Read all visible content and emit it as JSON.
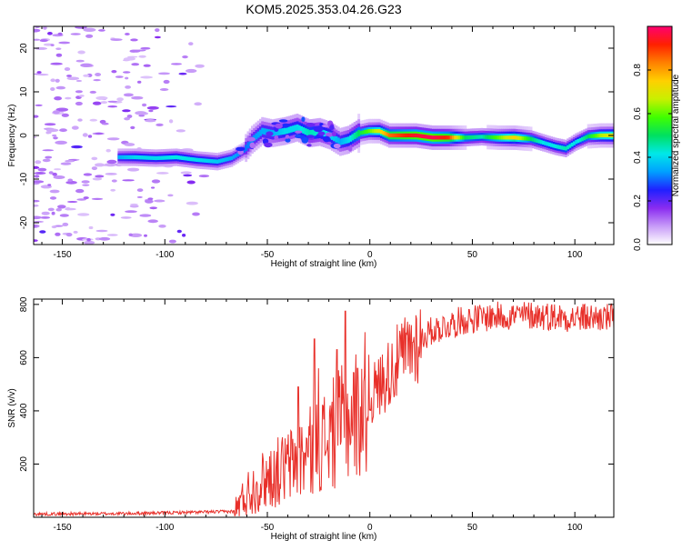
{
  "title": "KOM5.2025.353.04.26.G23",
  "colors": {
    "snr_line": "#e8302a",
    "frame": "#000000"
  },
  "chart_data": [
    {
      "type": "heatmap",
      "name": "spectrogram",
      "xlabel": "Height of straight line (km)",
      "ylabel": "Frequency (Hz)",
      "xlim": [
        -164,
        119
      ],
      "ylim": [
        -25,
        25
      ],
      "xticks": [
        -150,
        -100,
        -50,
        0,
        50,
        100
      ],
      "xtick_labels": [
        "-150",
        "-100",
        "-50",
        "0",
        "50",
        "100"
      ],
      "yticks": [
        -20,
        -10,
        0,
        10,
        20
      ],
      "ytick_labels": [
        "-20",
        "-10",
        "0",
        "10",
        "20"
      ],
      "colorbar": {
        "label": "Normalized spectral amplitude",
        "range": [
          0,
          1
        ],
        "ticks": [
          0.0,
          0.2,
          0.4,
          0.6,
          0.8
        ],
        "tick_labels": [
          "0.0",
          "0.2",
          "0.4",
          "0.6",
          "0.8"
        ],
        "colormap": [
          "#ffffff",
          "#c89cf8",
          "#8a2cf0",
          "#2020ff",
          "#00a0ff",
          "#00e8e8",
          "#00e060",
          "#40ff00",
          "#c8f000",
          "#ffd000",
          "#ff8000",
          "#ff2000",
          "#ff0070"
        ]
      },
      "ridge": [
        {
          "x": -123,
          "y": -5.0,
          "a": 0.35
        },
        {
          "x": -115,
          "y": -5.0,
          "a": 0.4
        },
        {
          "x": -105,
          "y": -5.2,
          "a": 0.4
        },
        {
          "x": -95,
          "y": -5.0,
          "a": 0.42
        },
        {
          "x": -85,
          "y": -5.6,
          "a": 0.4
        },
        {
          "x": -75,
          "y": -6.0,
          "a": 0.38
        },
        {
          "x": -68,
          "y": -5.2,
          "a": 0.35
        },
        {
          "x": -62,
          "y": -3.5,
          "a": 0.3
        },
        {
          "x": -58,
          "y": -1.0,
          "a": 0.32
        },
        {
          "x": -53,
          "y": 1.0,
          "a": 0.35
        },
        {
          "x": -48,
          "y": 0.5,
          "a": 0.35
        },
        {
          "x": -42,
          "y": 1.0,
          "a": 0.4
        },
        {
          "x": -36,
          "y": 1.8,
          "a": 0.4
        },
        {
          "x": -30,
          "y": 0.5,
          "a": 0.45
        },
        {
          "x": -25,
          "y": 0.8,
          "a": 0.42
        },
        {
          "x": -20,
          "y": 0.0,
          "a": 0.4
        },
        {
          "x": -15,
          "y": -1.5,
          "a": 0.35
        },
        {
          "x": -11,
          "y": -1.0,
          "a": 0.4
        },
        {
          "x": -6,
          "y": 0.5,
          "a": 0.5
        },
        {
          "x": -1,
          "y": 1.0,
          "a": 0.6
        },
        {
          "x": 4,
          "y": 1.0,
          "a": 0.7
        },
        {
          "x": 9,
          "y": 0.0,
          "a": 0.85
        },
        {
          "x": 15,
          "y": 0.0,
          "a": 0.9
        },
        {
          "x": 22,
          "y": 0.0,
          "a": 0.95
        },
        {
          "x": 30,
          "y": -0.5,
          "a": 0.98
        },
        {
          "x": 38,
          "y": -0.5,
          "a": 0.9
        },
        {
          "x": 46,
          "y": -0.5,
          "a": 0.5
        },
        {
          "x": 54,
          "y": -0.3,
          "a": 0.45
        },
        {
          "x": 62,
          "y": -0.5,
          "a": 0.6
        },
        {
          "x": 70,
          "y": -0.5,
          "a": 0.75
        },
        {
          "x": 78,
          "y": -0.8,
          "a": 0.5
        },
        {
          "x": 85,
          "y": -1.8,
          "a": 0.4
        },
        {
          "x": 90,
          "y": -2.5,
          "a": 0.42
        },
        {
          "x": 95,
          "y": -3.0,
          "a": 0.45
        },
        {
          "x": 100,
          "y": -1.5,
          "a": 0.4
        },
        {
          "x": 106,
          "y": -0.2,
          "a": 0.5
        },
        {
          "x": 112,
          "y": 0.0,
          "a": 0.65
        },
        {
          "x": 118,
          "y": 0.0,
          "a": 0.7
        }
      ]
    },
    {
      "type": "line",
      "name": "snr",
      "xlabel": "Height of straight line (km)",
      "ylabel": "SNR (v/v)",
      "xlim": [
        -164,
        119
      ],
      "ylim": [
        0,
        820
      ],
      "xticks": [
        -150,
        -100,
        -50,
        0,
        50,
        100
      ],
      "xtick_labels": [
        "-150",
        "-100",
        "-50",
        "0",
        "50",
        "100"
      ],
      "yticks": [
        200,
        400,
        600,
        800
      ],
      "ytick_labels": [
        "200",
        "400",
        "600",
        "800"
      ],
      "envelope": [
        {
          "x": -164,
          "v": 12
        },
        {
          "x": -120,
          "v": 14
        },
        {
          "x": -90,
          "v": 18
        },
        {
          "x": -66,
          "v": 22
        },
        {
          "x": -60,
          "v": 90
        },
        {
          "x": -50,
          "v": 150
        },
        {
          "x": -40,
          "v": 190
        },
        {
          "x": -30,
          "v": 240
        },
        {
          "x": -20,
          "v": 300
        },
        {
          "x": -10,
          "v": 370
        },
        {
          "x": 0,
          "v": 450
        },
        {
          "x": 10,
          "v": 550
        },
        {
          "x": 20,
          "v": 640
        },
        {
          "x": 30,
          "v": 700
        },
        {
          "x": 45,
          "v": 740
        },
        {
          "x": 60,
          "v": 755
        },
        {
          "x": 80,
          "v": 760
        },
        {
          "x": 100,
          "v": 750
        },
        {
          "x": 119,
          "v": 750
        }
      ],
      "spikes": [
        {
          "x": -27,
          "v": 670
        },
        {
          "x": -25,
          "v": 560
        },
        {
          "x": -16,
          "v": 630
        },
        {
          "x": -12,
          "v": 775
        },
        {
          "x": -35,
          "v": 490
        },
        {
          "x": -6,
          "v": 560
        }
      ]
    }
  ]
}
